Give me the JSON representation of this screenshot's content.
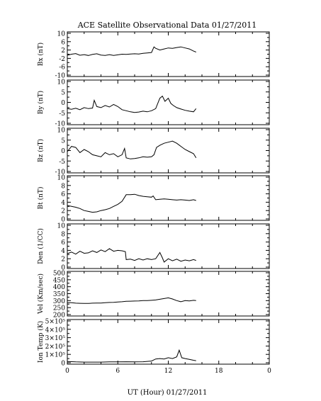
{
  "title": "ACE Satellite Observational Data   01/27/2011",
  "chart_data": [
    {
      "type": "line",
      "ylabel": "Bx (nT)",
      "ylim": [
        -10,
        10
      ],
      "yticks": [
        "-10",
        "-6",
        "-2",
        "2",
        "6",
        "10"
      ],
      "series": [
        {
          "x": [
            0,
            0.5,
            1,
            1.5,
            2,
            2.5,
            3,
            3.5,
            4,
            4.5,
            5,
            5.5,
            6,
            6.5,
            7,
            7.5,
            8,
            8.5,
            9,
            9.5,
            10,
            10.3,
            10.5,
            11,
            11.5,
            12,
            12.5,
            13,
            13.5,
            14,
            14.5,
            15,
            15.3
          ],
          "values": [
            -0.5,
            0.0,
            0.3,
            -0.5,
            -0.2,
            -0.6,
            -0.1,
            0.2,
            -0.4,
            -0.6,
            -0.2,
            -0.6,
            -0.3,
            0.0,
            -0.1,
            0.1,
            0.2,
            0.1,
            0.4,
            0.6,
            0.8,
            3.5,
            2.8,
            2.0,
            2.5,
            3.0,
            2.8,
            3.2,
            3.5,
            3.0,
            2.5,
            1.5,
            1.0
          ]
        }
      ]
    },
    {
      "type": "line",
      "ylabel": "By (nT)",
      "ylim": [
        -10,
        10
      ],
      "yticks": [
        "-10",
        "-5",
        "0",
        "5",
        "10"
      ],
      "series": [
        {
          "x": [
            0,
            0.5,
            1,
            1.5,
            2,
            2.5,
            3,
            3.2,
            3.5,
            4,
            4.5,
            5,
            5.5,
            6,
            6.5,
            7,
            7.5,
            8,
            8.5,
            9,
            9.5,
            10,
            10.5,
            11,
            11.3,
            11.6,
            12,
            12.3,
            12.6,
            13,
            13.5,
            14,
            14.5,
            15,
            15.3
          ],
          "values": [
            -3.0,
            -3.3,
            -2.8,
            -3.5,
            -2.5,
            -3.0,
            -2.7,
            1.0,
            -2.0,
            -2.5,
            -1.5,
            -2.2,
            -1.0,
            -2.0,
            -3.5,
            -4.0,
            -4.5,
            -4.8,
            -4.6,
            -4.2,
            -4.5,
            -4.0,
            -3.0,
            2.0,
            3.0,
            0.5,
            2.0,
            -0.5,
            -1.5,
            -2.5,
            -3.2,
            -3.8,
            -4.2,
            -4.5,
            -3.0
          ]
        }
      ]
    },
    {
      "type": "line",
      "ylabel": "Bz (nT)",
      "ylim": [
        -10,
        10
      ],
      "yticks": [
        "-10",
        "-5",
        "0",
        "5",
        "10"
      ],
      "series": [
        {
          "x": [
            0,
            0.5,
            1,
            1.5,
            2,
            2.5,
            3,
            3.5,
            4,
            4.5,
            5,
            5.5,
            6,
            6.5,
            6.8,
            7,
            7.5,
            8,
            8.5,
            9,
            9.5,
            10,
            10.3,
            10.6,
            11,
            11.5,
            12,
            12.5,
            13,
            13.5,
            14,
            14.5,
            15,
            15.3
          ],
          "values": [
            -0.5,
            2.0,
            1.5,
            -1.0,
            0.5,
            -0.5,
            -2.0,
            -2.5,
            -3.0,
            -1.0,
            -2.0,
            -1.5,
            -3.0,
            -2.0,
            1.0,
            -3.5,
            -4.0,
            -3.8,
            -3.5,
            -3.0,
            -3.2,
            -3.0,
            -2.0,
            1.5,
            2.5,
            3.5,
            4.0,
            4.5,
            3.5,
            2.0,
            0.5,
            -0.5,
            -1.5,
            -3.5
          ]
        }
      ]
    },
    {
      "type": "line",
      "ylabel": "Bt (nT)",
      "ylim": [
        0,
        10
      ],
      "yticks": [
        "0",
        "2",
        "4",
        "6",
        "8",
        "10"
      ],
      "series": [
        {
          "x": [
            0,
            0.5,
            1,
            1.5,
            2,
            2.5,
            3,
            3.5,
            4,
            4.5,
            5,
            5.5,
            6,
            6.5,
            7,
            7.5,
            8,
            8.5,
            9,
            9.5,
            10,
            10.2,
            10.5,
            11,
            11.5,
            12,
            12.5,
            13,
            13.5,
            14,
            14.5,
            15,
            15.3
          ],
          "values": [
            3.2,
            3.0,
            2.8,
            2.5,
            2.0,
            1.8,
            1.6,
            1.7,
            2.0,
            2.2,
            2.5,
            3.0,
            3.5,
            4.2,
            5.8,
            5.8,
            5.9,
            5.6,
            5.4,
            5.3,
            5.2,
            5.5,
            4.6,
            4.7,
            4.8,
            4.7,
            4.6,
            4.5,
            4.6,
            4.5,
            4.4,
            4.6,
            4.4
          ]
        }
      ]
    },
    {
      "type": "line",
      "ylabel": "Den (1/CC)",
      "ylim": [
        0,
        10
      ],
      "yticks": [
        "0",
        "2",
        "4",
        "6",
        "8",
        "10"
      ],
      "series": [
        {
          "x": [
            0,
            0.5,
            1,
            1.5,
            2,
            2.5,
            3,
            3.5,
            4,
            4.5,
            5,
            5.5,
            6,
            6.5,
            6.9,
            7,
            7.5,
            8,
            8.5,
            9,
            9.5,
            10,
            10.5,
            11,
            11.3,
            11.5,
            12,
            12.5,
            13,
            13.5,
            14,
            14.5,
            15,
            15.3
          ],
          "values": [
            3.2,
            3.6,
            3.1,
            3.8,
            3.3,
            3.4,
            3.9,
            3.5,
            4.1,
            3.7,
            4.4,
            3.8,
            4.0,
            3.9,
            3.7,
            1.8,
            1.9,
            1.6,
            2.0,
            1.7,
            2.0,
            1.8,
            2.0,
            3.5,
            2.2,
            1.2,
            2.0,
            1.5,
            1.9,
            1.4,
            1.7,
            1.5,
            1.8,
            1.6
          ]
        }
      ]
    },
    {
      "type": "line",
      "ylabel": "Vel (Km/sec)",
      "ylim": [
        200,
        500
      ],
      "yticks": [
        "200",
        "250",
        "300",
        "350",
        "400",
        "450",
        "500"
      ],
      "series": [
        {
          "x": [
            0,
            0.5,
            1,
            1.5,
            2,
            2.5,
            3,
            3.5,
            4,
            4.5,
            5,
            5.5,
            6,
            6.5,
            7,
            7.5,
            8,
            8.5,
            9,
            9.5,
            10,
            10.5,
            11,
            11.5,
            12,
            12.5,
            13,
            13.5,
            14,
            14.5,
            15,
            15.3
          ],
          "values": [
            285,
            285,
            282,
            281,
            280,
            280,
            282,
            283,
            283,
            285,
            287,
            288,
            290,
            292,
            295,
            296,
            297,
            298,
            300,
            300,
            302,
            305,
            310,
            315,
            320,
            312,
            300,
            292,
            300,
            298,
            302,
            300
          ]
        }
      ]
    },
    {
      "type": "line",
      "ylabel": "Ion Temp (K)",
      "ylim": [
        0,
        5
      ],
      "yticks": [
        "0",
        "1×10⁵",
        "2×10⁵",
        "3×10⁵",
        "4×10⁵",
        "5×10⁵"
      ],
      "series": [
        {
          "x": [
            0,
            1,
            2,
            3,
            4,
            5,
            6,
            7,
            8,
            9,
            10,
            10.5,
            11,
            11.5,
            12,
            12.5,
            13,
            13.3,
            13.6,
            14,
            14.5,
            15,
            15.3
          ],
          "values": [
            0.15,
            0.1,
            0.08,
            0.08,
            0.08,
            0.1,
            0.1,
            0.12,
            0.1,
            0.12,
            0.2,
            0.45,
            0.5,
            0.45,
            0.6,
            0.5,
            0.7,
            1.5,
            0.6,
            0.5,
            0.4,
            0.3,
            0.25
          ]
        }
      ]
    }
  ],
  "x_axis": {
    "xlabel": "UT (Hour)  01/27/2011",
    "xlim": [
      0,
      24
    ],
    "xticks": [
      "0",
      "6",
      "12",
      "18",
      "0"
    ]
  }
}
